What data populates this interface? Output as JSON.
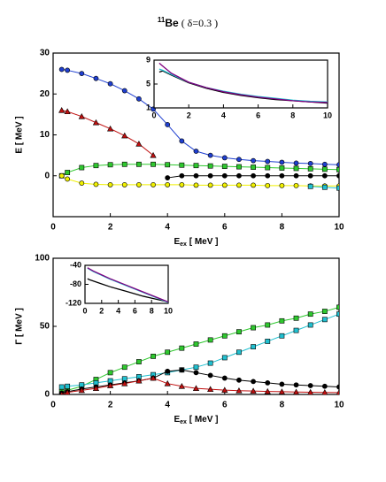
{
  "chart_data": [
    {
      "type": "line",
      "title": {
        "sup": "11",
        "main": "Be",
        "rest": " ( δ=0.3 )"
      },
      "ylabel": "E [ MeV ]",
      "xlabel": {
        "main": "E",
        "sub": "ex",
        "rest": " [ MeV ]"
      },
      "xlim": [
        0,
        10
      ],
      "xticks": [
        0,
        2,
        4,
        6,
        8,
        10
      ],
      "ylim": [
        -10,
        30
      ],
      "yticks": [
        0,
        10,
        20,
        30
      ],
      "x": [
        0.3,
        0.5,
        1,
        1.5,
        2,
        2.5,
        3,
        3.5,
        4,
        4.5,
        5,
        5.5,
        6,
        6.5,
        7,
        7.5,
        8,
        8.5,
        9,
        9.5,
        10
      ],
      "series": [
        {
          "color": "#1f3fd0",
          "marker": "circle",
          "values": [
            26,
            25.8,
            25,
            23.8,
            22.5,
            20.8,
            18.8,
            16.3,
            12.5,
            8.5,
            6,
            5,
            4.4,
            4,
            3.7,
            3.5,
            3.3,
            3.1,
            3,
            2.8,
            2.7
          ]
        },
        {
          "color": "#c01010",
          "marker": "triangle",
          "values": [
            16,
            15.7,
            14.5,
            13,
            11.5,
            9.8,
            7.8,
            5,
            null,
            null,
            null,
            null,
            null,
            null,
            null,
            null,
            null,
            null,
            null,
            null,
            null
          ]
        },
        {
          "color": "#2ec82e",
          "marker": "square",
          "values": [
            0,
            0.8,
            2,
            2.5,
            2.7,
            2.8,
            2.8,
            2.8,
            2.7,
            2.6,
            2.5,
            2.4,
            2.3,
            2.2,
            2.1,
            2,
            1.9,
            1.8,
            1.7,
            1.6,
            1.5
          ]
        },
        {
          "color": "#f0f000",
          "marker": "circle",
          "values": [
            0,
            -0.8,
            -1.8,
            -2.1,
            -2.2,
            -2.2,
            -2.2,
            -2.2,
            -2.2,
            -2.2,
            -2.3,
            -2.3,
            -2.3,
            -2.3,
            -2.3,
            -2.4,
            -2.4,
            -2.4,
            -2.5,
            -2.5,
            -2.5
          ]
        },
        {
          "color": "#000000",
          "marker": "circle",
          "values": [
            null,
            null,
            null,
            null,
            null,
            null,
            null,
            null,
            -0.5,
            0,
            0,
            0,
            0,
            0,
            0,
            0,
            0,
            0,
            0,
            0,
            0
          ]
        },
        {
          "color": "#20c0d0",
          "marker": "square",
          "values": [
            null,
            null,
            null,
            null,
            null,
            null,
            null,
            null,
            null,
            null,
            null,
            null,
            null,
            null,
            null,
            null,
            null,
            null,
            -2.6,
            -2.8,
            -3
          ]
        }
      ]
    },
    {
      "type": "line",
      "xlim": [
        0,
        10
      ],
      "xticks": [
        0,
        2,
        4,
        6,
        8,
        10
      ],
      "ylim": [
        1,
        9
      ],
      "yticks": [
        1,
        5,
        9
      ],
      "x": [
        0.3,
        0.5,
        1,
        2,
        3,
        4,
        5,
        6,
        7,
        8,
        9,
        10
      ],
      "series": [
        {
          "color": "#000000",
          "values": [
            7,
            7.2,
            6.5,
            5.2,
            4.3,
            3.6,
            3.1,
            2.7,
            2.4,
            2.2,
            2,
            1.8
          ]
        },
        {
          "color": "#20c0d0",
          "values": [
            7.5,
            7.3,
            6.6,
            5.3,
            4.4,
            3.8,
            3.3,
            2.9,
            2.6,
            2.3,
            2.1,
            2
          ]
        },
        {
          "color": "#800080",
          "values": [
            8.5,
            8,
            6.8,
            5.3,
            4.4,
            3.7,
            3.2,
            2.8,
            2.5,
            2.2,
            2,
            1.9
          ]
        }
      ]
    },
    {
      "type": "line",
      "ylabel": "Γ [ MeV ]",
      "xlabel": {
        "main": "E",
        "sub": "ex",
        "rest": " [ MeV ]"
      },
      "xlim": [
        0,
        10
      ],
      "xticks": [
        0,
        2,
        4,
        6,
        8,
        10
      ],
      "ylim": [
        0,
        100
      ],
      "yticks": [
        0,
        50,
        100
      ],
      "x": [
        0.3,
        0.5,
        1,
        1.5,
        2,
        2.5,
        3,
        3.5,
        4,
        4.5,
        5,
        5.5,
        6,
        6.5,
        7,
        7.5,
        8,
        8.5,
        9,
        9.5,
        10
      ],
      "series": [
        {
          "color": "#2ec82e",
          "marker": "square",
          "values": [
            2,
            3,
            6,
            11,
            16,
            20,
            24,
            28,
            31,
            34,
            37,
            40,
            43,
            46,
            49,
            51,
            54,
            56,
            59,
            61,
            64
          ]
        },
        {
          "color": "#20c0d0",
          "marker": "square",
          "values": [
            5.5,
            6,
            7,
            8.5,
            10,
            11.5,
            13,
            14.5,
            16,
            18,
            20,
            23,
            27,
            31,
            35,
            39,
            43,
            47,
            51,
            55,
            59
          ]
        },
        {
          "color": "#000000",
          "marker": "circle",
          "values": [
            1,
            2,
            4,
            5.5,
            7,
            8.5,
            10,
            12,
            17,
            18,
            16,
            14,
            12,
            10.5,
            9.5,
            8.5,
            7.5,
            7,
            6.5,
            6,
            5.5
          ]
        },
        {
          "color": "#c01010",
          "marker": "triangle",
          "values": [
            0,
            1.5,
            3,
            4.5,
            6.5,
            8,
            10,
            12,
            8,
            6,
            4.5,
            3.8,
            3.2,
            2.8,
            2.5,
            2.2,
            2,
            1.8,
            1.6,
            1.5,
            1.4
          ]
        }
      ]
    },
    {
      "type": "line",
      "xlim": [
        0,
        10
      ],
      "xticks": [
        0,
        2,
        4,
        6,
        8,
        10
      ],
      "ylim": [
        -120,
        -40
      ],
      "yticks": [
        -40,
        -80,
        -120
      ],
      "x": [
        0.3,
        0.5,
        1,
        2,
        3,
        4,
        5,
        6,
        7,
        8,
        9,
        10
      ],
      "series": [
        {
          "color": "#000000",
          "values": [
            -68,
            -70,
            -73,
            -79,
            -85,
            -90,
            -95,
            -100,
            -105,
            -109,
            -113,
            -117
          ]
        },
        {
          "color": "#20c0d0",
          "values": [
            -46,
            -48,
            -53,
            -61,
            -69,
            -76,
            -83,
            -90,
            -97,
            -104,
            -111,
            -118
          ]
        },
        {
          "color": "#800080",
          "values": [
            -45,
            -47,
            -52,
            -60,
            -68,
            -75,
            -82,
            -89,
            -96,
            -103,
            -110,
            -117
          ]
        }
      ]
    }
  ]
}
